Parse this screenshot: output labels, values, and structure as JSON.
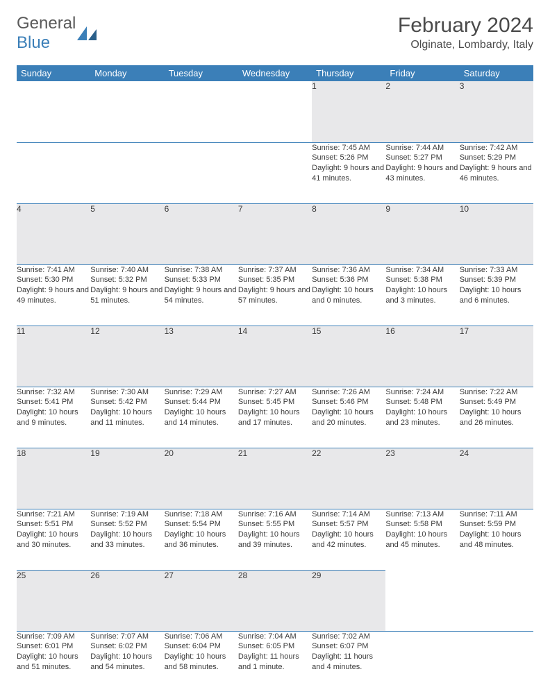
{
  "logo": {
    "textA": "General",
    "textB": "Blue"
  },
  "title": "February 2024",
  "location": "Olginate, Lombardy, Italy",
  "colors": {
    "header_bg": "#3b7fb8",
    "header_text": "#ffffff",
    "daynum_bg": "#e8e8ea",
    "border": "#3b7fb8",
    "text": "#3a3a3a",
    "logo_gray": "#5a5a5a",
    "logo_blue": "#3b7fb8"
  },
  "dayHeaders": [
    "Sunday",
    "Monday",
    "Tuesday",
    "Wednesday",
    "Thursday",
    "Friday",
    "Saturday"
  ],
  "weeks": [
    [
      null,
      null,
      null,
      null,
      {
        "n": "1",
        "sr": "7:45 AM",
        "ss": "5:26 PM",
        "dl": "9 hours and 41 minutes."
      },
      {
        "n": "2",
        "sr": "7:44 AM",
        "ss": "5:27 PM",
        "dl": "9 hours and 43 minutes."
      },
      {
        "n": "3",
        "sr": "7:42 AM",
        "ss": "5:29 PM",
        "dl": "9 hours and 46 minutes."
      }
    ],
    [
      {
        "n": "4",
        "sr": "7:41 AM",
        "ss": "5:30 PM",
        "dl": "9 hours and 49 minutes."
      },
      {
        "n": "5",
        "sr": "7:40 AM",
        "ss": "5:32 PM",
        "dl": "9 hours and 51 minutes."
      },
      {
        "n": "6",
        "sr": "7:38 AM",
        "ss": "5:33 PM",
        "dl": "9 hours and 54 minutes."
      },
      {
        "n": "7",
        "sr": "7:37 AM",
        "ss": "5:35 PM",
        "dl": "9 hours and 57 minutes."
      },
      {
        "n": "8",
        "sr": "7:36 AM",
        "ss": "5:36 PM",
        "dl": "10 hours and 0 minutes."
      },
      {
        "n": "9",
        "sr": "7:34 AM",
        "ss": "5:38 PM",
        "dl": "10 hours and 3 minutes."
      },
      {
        "n": "10",
        "sr": "7:33 AM",
        "ss": "5:39 PM",
        "dl": "10 hours and 6 minutes."
      }
    ],
    [
      {
        "n": "11",
        "sr": "7:32 AM",
        "ss": "5:41 PM",
        "dl": "10 hours and 9 minutes."
      },
      {
        "n": "12",
        "sr": "7:30 AM",
        "ss": "5:42 PM",
        "dl": "10 hours and 11 minutes."
      },
      {
        "n": "13",
        "sr": "7:29 AM",
        "ss": "5:44 PM",
        "dl": "10 hours and 14 minutes."
      },
      {
        "n": "14",
        "sr": "7:27 AM",
        "ss": "5:45 PM",
        "dl": "10 hours and 17 minutes."
      },
      {
        "n": "15",
        "sr": "7:26 AM",
        "ss": "5:46 PM",
        "dl": "10 hours and 20 minutes."
      },
      {
        "n": "16",
        "sr": "7:24 AM",
        "ss": "5:48 PM",
        "dl": "10 hours and 23 minutes."
      },
      {
        "n": "17",
        "sr": "7:22 AM",
        "ss": "5:49 PM",
        "dl": "10 hours and 26 minutes."
      }
    ],
    [
      {
        "n": "18",
        "sr": "7:21 AM",
        "ss": "5:51 PM",
        "dl": "10 hours and 30 minutes."
      },
      {
        "n": "19",
        "sr": "7:19 AM",
        "ss": "5:52 PM",
        "dl": "10 hours and 33 minutes."
      },
      {
        "n": "20",
        "sr": "7:18 AM",
        "ss": "5:54 PM",
        "dl": "10 hours and 36 minutes."
      },
      {
        "n": "21",
        "sr": "7:16 AM",
        "ss": "5:55 PM",
        "dl": "10 hours and 39 minutes."
      },
      {
        "n": "22",
        "sr": "7:14 AM",
        "ss": "5:57 PM",
        "dl": "10 hours and 42 minutes."
      },
      {
        "n": "23",
        "sr": "7:13 AM",
        "ss": "5:58 PM",
        "dl": "10 hours and 45 minutes."
      },
      {
        "n": "24",
        "sr": "7:11 AM",
        "ss": "5:59 PM",
        "dl": "10 hours and 48 minutes."
      }
    ],
    [
      {
        "n": "25",
        "sr": "7:09 AM",
        "ss": "6:01 PM",
        "dl": "10 hours and 51 minutes."
      },
      {
        "n": "26",
        "sr": "7:07 AM",
        "ss": "6:02 PM",
        "dl": "10 hours and 54 minutes."
      },
      {
        "n": "27",
        "sr": "7:06 AM",
        "ss": "6:04 PM",
        "dl": "10 hours and 58 minutes."
      },
      {
        "n": "28",
        "sr": "7:04 AM",
        "ss": "6:05 PM",
        "dl": "11 hours and 1 minute."
      },
      {
        "n": "29",
        "sr": "7:02 AM",
        "ss": "6:07 PM",
        "dl": "11 hours and 4 minutes."
      },
      null,
      null
    ]
  ]
}
